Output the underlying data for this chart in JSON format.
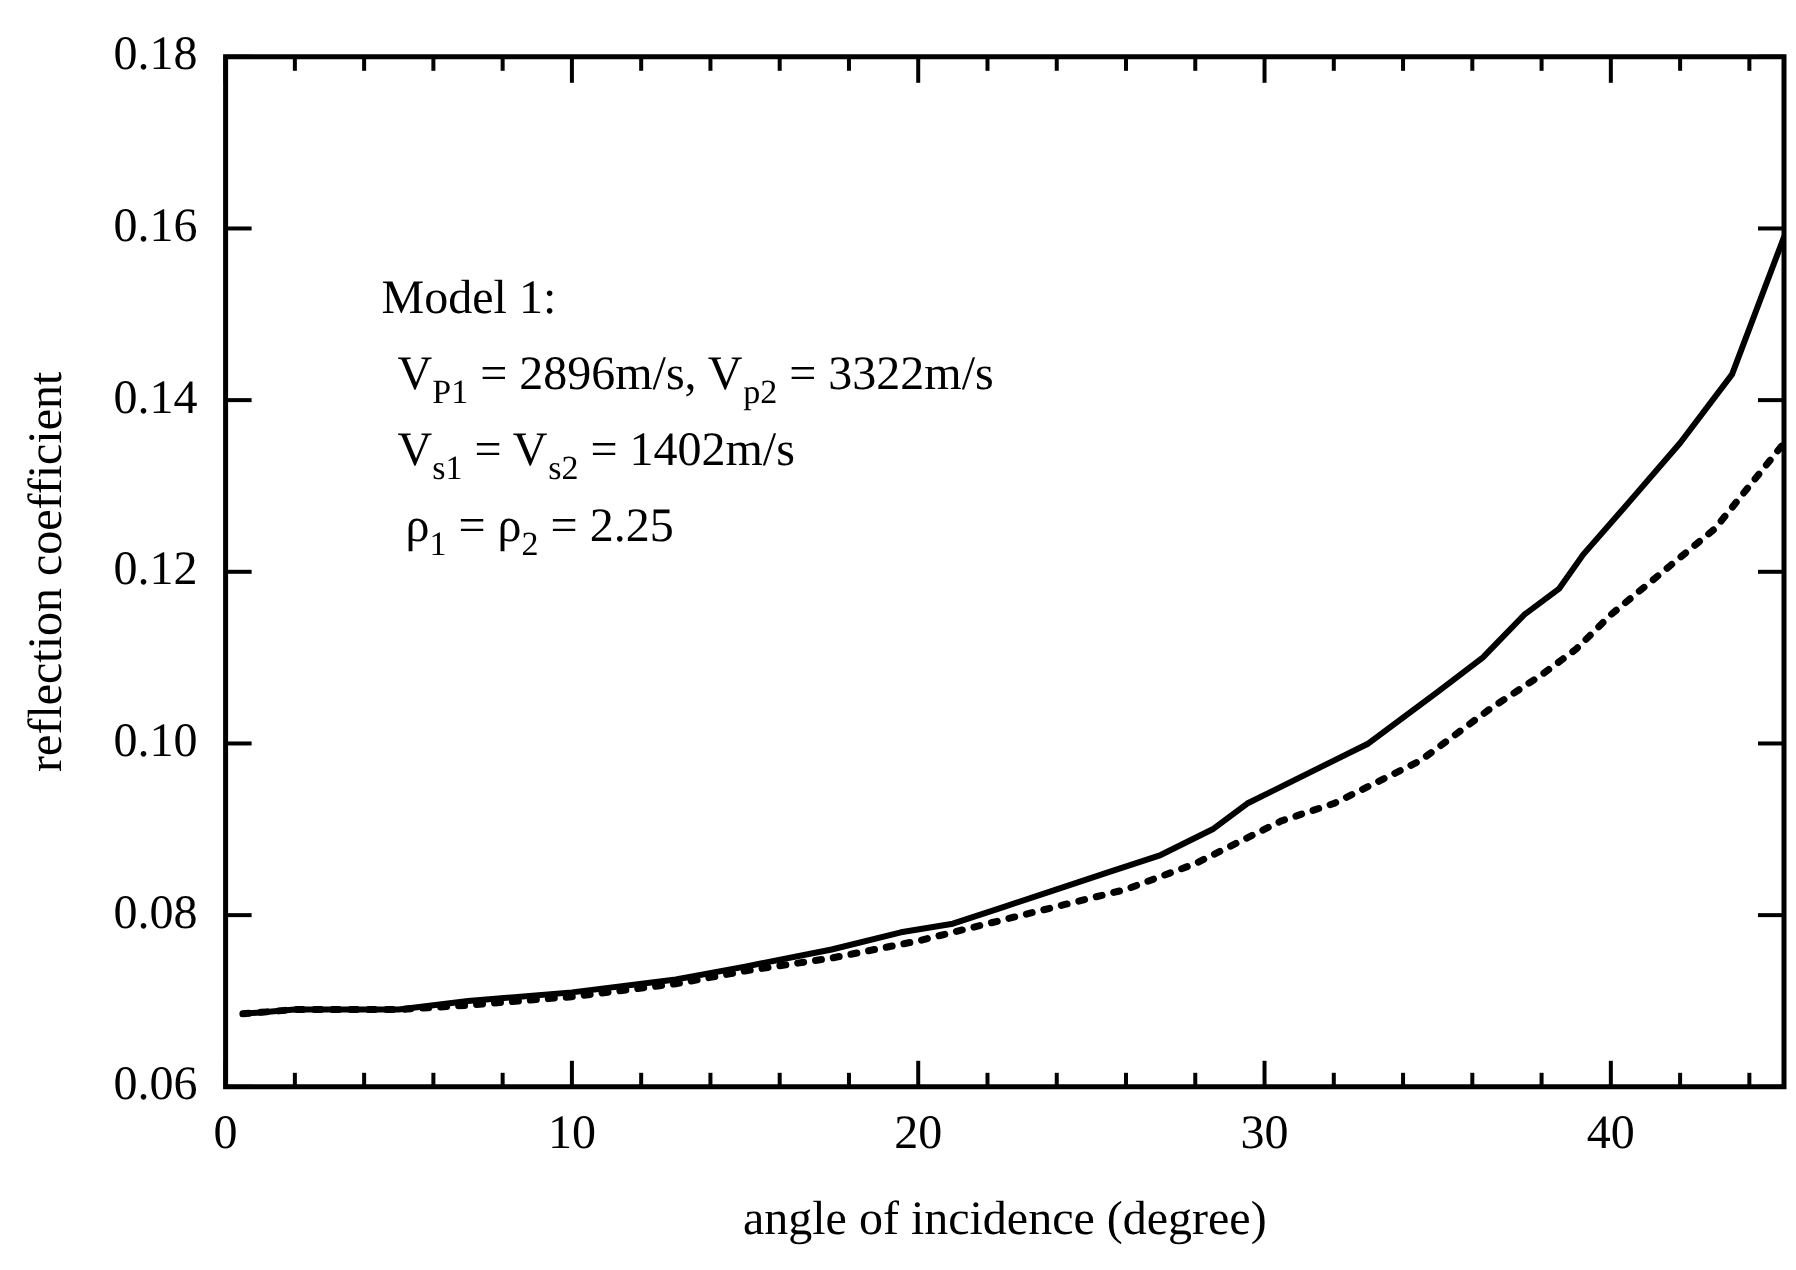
{
  "chart_data": {
    "type": "line",
    "xlabel": "angle of incidence (degree)",
    "ylabel": "reflection coefficient",
    "xlim": [
      0,
      45
    ],
    "xticks": [
      0,
      {
        "value": 2,
        "label": null
      },
      {
        "value": 4,
        "label": null
      },
      {
        "value": 6,
        "label": null
      },
      {
        "value": 8,
        "label": null
      },
      10,
      {
        "value": 12,
        "label": null
      },
      {
        "value": 14,
        "label": null
      },
      {
        "value": 16,
        "label": null
      },
      {
        "value": 18,
        "label": null
      },
      20,
      {
        "value": 22,
        "label": null
      },
      {
        "value": 24,
        "label": null
      },
      {
        "value": 26,
        "label": null
      },
      {
        "value": 28,
        "label": null
      },
      30,
      {
        "value": 32,
        "label": null
      },
      {
        "value": 34,
        "label": null
      },
      {
        "value": 36,
        "label": null
      },
      {
        "value": 38,
        "label": null
      },
      40,
      {
        "value": 42,
        "label": null
      },
      {
        "value": 44,
        "label": null
      }
    ],
    "ylim": [
      0.06,
      0.18
    ],
    "yticks": [
      {
        "value": 0.06,
        "label": "0.06"
      },
      {
        "value": 0.08,
        "label": "0.08"
      },
      {
        "value": 0.1,
        "label": "0.10"
      },
      {
        "value": 0.12,
        "label": "0.12"
      },
      {
        "value": 0.14,
        "label": "0.14"
      },
      {
        "value": 0.16,
        "label": "0.16"
      },
      {
        "value": 0.18,
        "label": "0.18"
      }
    ],
    "grid": false,
    "legend": false,
    "marker": "none",
    "annotations": [
      "Model 1:",
      "V$_{P1}$ = 2896m/s, V$_{p2}$ = 3322m/s",
      "V$_{s1}$ = V$_{s2}$ = 1402m/s",
      "ρ$_{1}$ = ρ$_{2}$ = 2.25"
    ],
    "series": [
      {
        "color": "#000000",
        "line_style": "solid",
        "x": [
          0.5,
          2,
          5,
          7,
          10,
          13,
          15,
          17.5,
          19.5,
          21,
          22.5,
          24,
          25.5,
          27,
          28.5,
          29.5,
          30.5,
          32,
          33,
          34,
          35,
          36.3,
          37.5,
          38.5,
          39.2,
          40.5,
          42,
          43.5,
          45
        ],
        "values": [
          0.0685,
          0.069,
          0.069,
          0.07,
          0.071,
          0.0725,
          0.074,
          0.076,
          0.078,
          0.079,
          0.081,
          0.083,
          0.085,
          0.087,
          0.09,
          0.093,
          0.095,
          0.098,
          0.1,
          0.103,
          0.106,
          0.11,
          0.115,
          0.118,
          0.122,
          0.128,
          0.135,
          0.143,
          0.159
        ]
      },
      {
        "color": "#000000",
        "line_style": "dotted",
        "x": [
          0.5,
          2,
          5,
          7,
          10,
          13,
          15,
          17.5,
          20,
          22,
          24,
          26,
          28,
          29.5,
          30.5,
          32,
          33,
          34.5,
          35.5,
          36.5,
          38,
          39,
          40,
          41.5,
          43,
          44,
          45
        ],
        "values": [
          0.0685,
          0.069,
          0.069,
          0.0695,
          0.0705,
          0.072,
          0.0735,
          0.075,
          0.077,
          0.079,
          0.081,
          0.083,
          0.086,
          0.089,
          0.091,
          0.093,
          0.095,
          0.098,
          0.101,
          0.104,
          0.108,
          0.111,
          0.115,
          0.12,
          0.125,
          0.13,
          0.135
        ]
      }
    ]
  }
}
